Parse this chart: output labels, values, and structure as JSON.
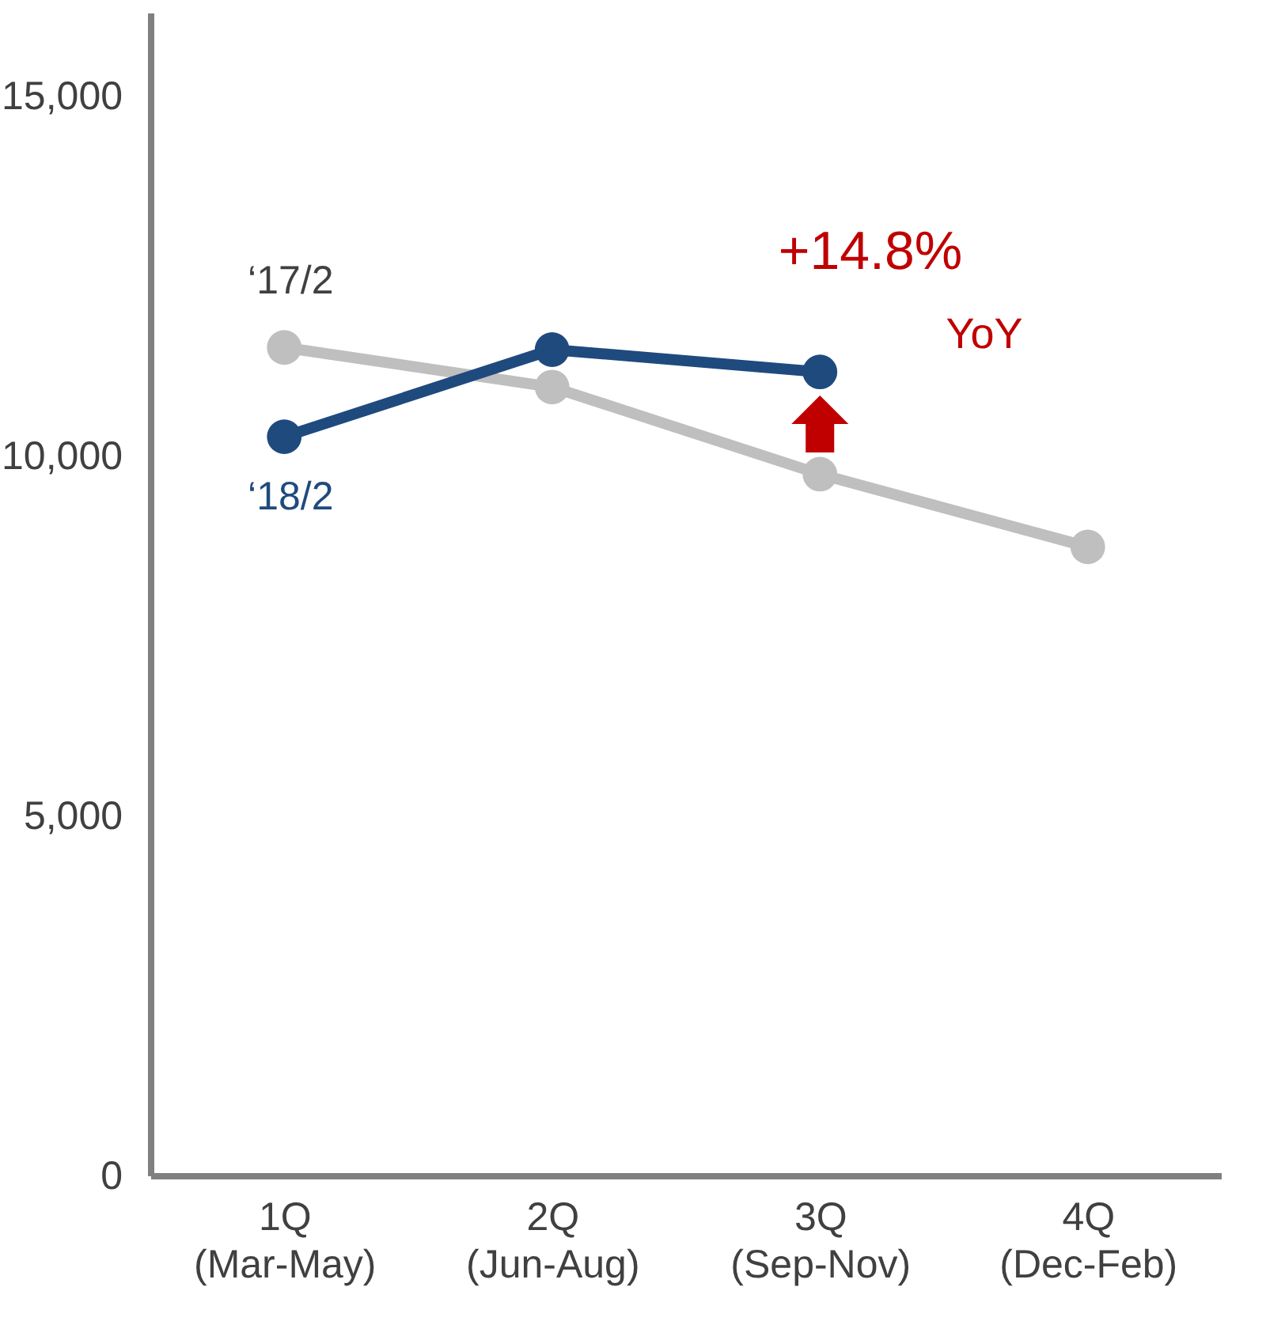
{
  "chart_data": {
    "type": "line",
    "categories": [
      "1Q\n(Mar-May)",
      "2Q\n(Jun-Aug)",
      "3Q\n(Sep-Nov)",
      "4Q\n(Dec-Feb)"
    ],
    "series": [
      {
        "name": "‘17/2",
        "color": "#bfbfbf",
        "values": [
          11500,
          10950,
          9740,
          8730
        ]
      },
      {
        "name": "‘18/2",
        "color": "#1f4a7e",
        "values": [
          10260,
          11470,
          11160,
          null
        ]
      }
    ],
    "ylim": [
      0,
      16150
    ],
    "yticks": [
      0,
      {
        "value": 5000,
        "label": "5,000"
      },
      {
        "value": 10000,
        "label": "10,000"
      },
      {
        "value": 15000,
        "label": "15,000"
      }
    ],
    "annotations": [
      "+14.8%",
      "YoY"
    ],
    "marker": "circle",
    "line_style": "solid"
  }
}
